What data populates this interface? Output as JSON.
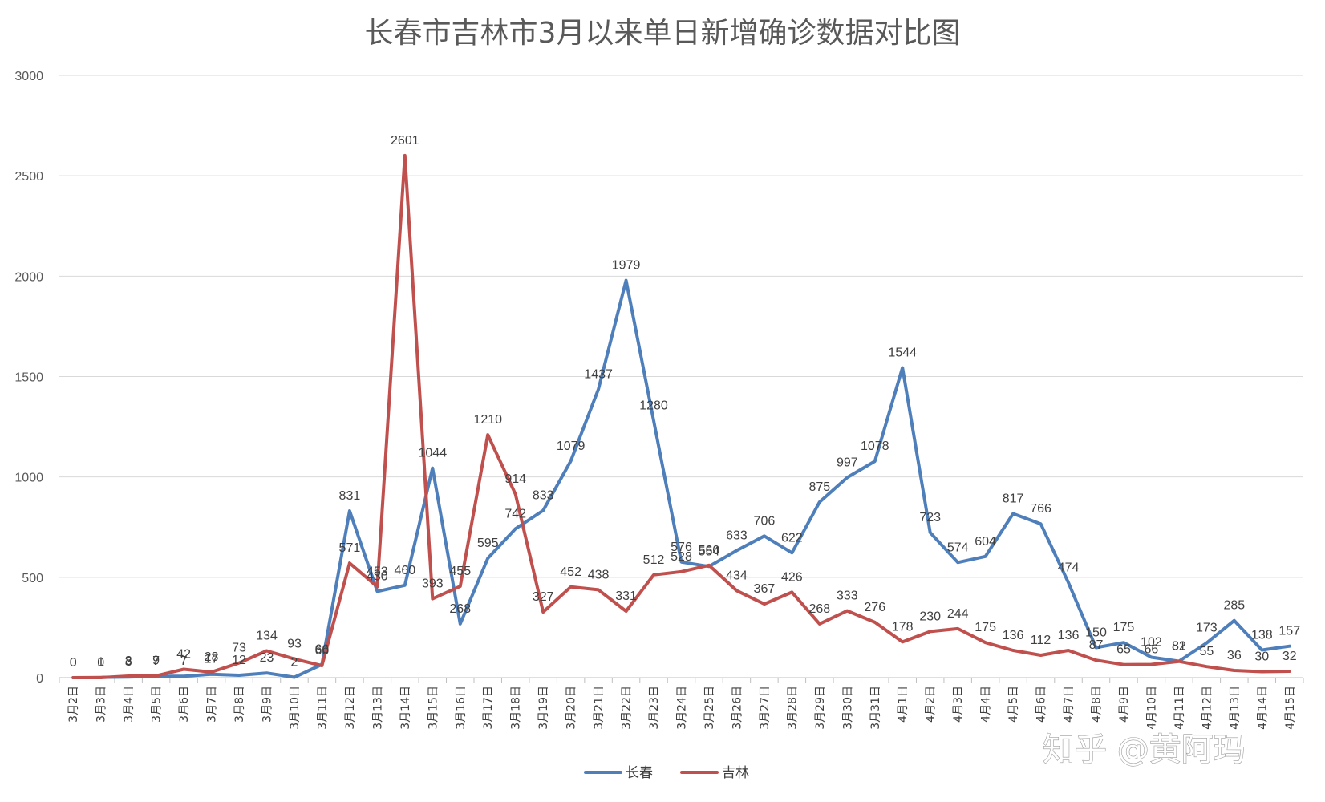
{
  "watermark": "知乎 @黄阿玛",
  "chart_data": {
    "type": "line",
    "title": "长春市吉林市3月以来单日新增确诊数据对比图",
    "xlabel": "",
    "ylabel": "",
    "ylim": [
      0,
      3000
    ],
    "yticks": [
      0,
      500,
      1000,
      1500,
      2000,
      2500,
      3000
    ],
    "grid": true,
    "legend_position": "bottom",
    "categories": [
      "3月2日",
      "3月3日",
      "3月4日",
      "3月5日",
      "3月6日",
      "3月7日",
      "3月8日",
      "3月9日",
      "3月10日",
      "3月11日",
      "3月12日",
      "3月13日",
      "3月14日",
      "3月15日",
      "3月16日",
      "3月17日",
      "3月18日",
      "3月19日",
      "3月20日",
      "3月21日",
      "3月22日",
      "3月23日",
      "3月24日",
      "3月25日",
      "3月26日",
      "3月27日",
      "3月28日",
      "3月29日",
      "3月30日",
      "3月31日",
      "4月1日",
      "4月2日",
      "4月3日",
      "4月4日",
      "4月5日",
      "4月6日",
      "4月7日",
      "4月8日",
      "4月9日",
      "4月10日",
      "4月11日",
      "4月12日",
      "4月13日",
      "4月14日",
      "4月15日"
    ],
    "series": [
      {
        "name": "长春",
        "color": "#4e7fbb",
        "values": [
          0,
          1,
          3,
          7,
          7,
          17,
          12,
          23,
          2,
          66,
          831,
          430,
          460,
          1044,
          268,
          595,
          742,
          833,
          1079,
          1437,
          1979,
          1280,
          576,
          554,
          633,
          706,
          622,
          875,
          997,
          1078,
          1544,
          723,
          574,
          604,
          817,
          766,
          474,
          150,
          175,
          102,
          82,
          173,
          285,
          138,
          157
        ]
      },
      {
        "name": "吉林",
        "color": "#c0504d",
        "values": [
          0,
          0,
          8,
          9,
          42,
          28,
          73,
          134,
          93,
          60,
          571,
          453,
          2601,
          393,
          455,
          1210,
          914,
          327,
          452,
          438,
          331,
          512,
          528,
          560,
          434,
          367,
          426,
          268,
          333,
          276,
          178,
          230,
          244,
          175,
          136,
          112,
          136,
          87,
          65,
          66,
          81,
          55,
          36,
          30,
          32
        ]
      }
    ]
  }
}
